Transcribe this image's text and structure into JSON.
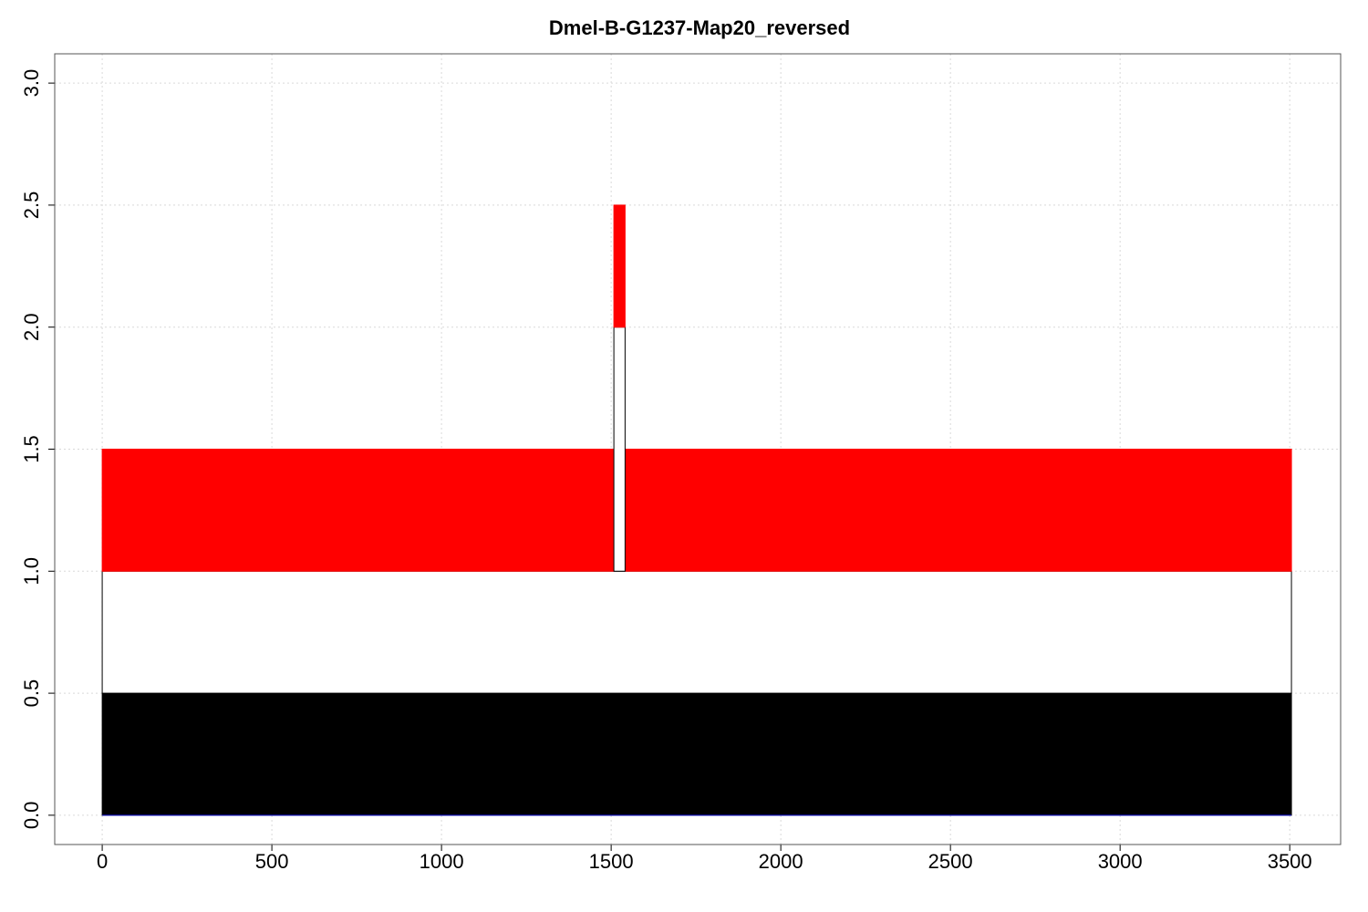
{
  "chart_data": {
    "type": "bar",
    "title": "Dmel-B-G1237-Map20_reversed",
    "xlabel": "",
    "ylabel": "",
    "xlim": [
      -140,
      3650
    ],
    "ylim": [
      -0.12,
      3.12
    ],
    "x_ticks": [
      0,
      500,
      1000,
      1500,
      2000,
      2500,
      3000,
      3500
    ],
    "x_tick_labels": [
      "0",
      "500",
      "1000",
      "1500",
      "2000",
      "2500",
      "3000",
      "3500"
    ],
    "y_ticks": [
      0.0,
      0.5,
      1.0,
      1.5,
      2.0,
      2.5,
      3.0
    ],
    "y_tick_labels": [
      "0.0",
      "0.5",
      "1.0",
      "1.5",
      "2.0",
      "2.5",
      "3.0"
    ],
    "grid": true,
    "segments": [
      {
        "name": "black-bar",
        "x0": 0,
        "x1": 3505,
        "y0": 0.0,
        "y1": 0.5,
        "fill": "#000000",
        "stroke": "#000000"
      },
      {
        "name": "white-bar",
        "x0": 0,
        "x1": 3505,
        "y0": 0.5,
        "y1": 1.0,
        "fill": "#ffffff",
        "stroke": "#000000"
      },
      {
        "name": "red-bar-left",
        "x0": 0,
        "x1": 1508,
        "y0": 1.0,
        "y1": 1.5,
        "fill": "#ff0000",
        "stroke": "#ff0000"
      },
      {
        "name": "red-bar-right",
        "x0": 1541,
        "x1": 3505,
        "y0": 1.0,
        "y1": 1.5,
        "fill": "#ff0000",
        "stroke": "#ff0000"
      },
      {
        "name": "white-spike",
        "x0": 1508,
        "x1": 1541,
        "y0": 1.0,
        "y1": 2.0,
        "fill": "#ffffff",
        "stroke": "#000000"
      },
      {
        "name": "red-spike",
        "x0": 1508,
        "x1": 1541,
        "y0": 2.0,
        "y1": 2.5,
        "fill": "#ff0000",
        "stroke": "#ff0000"
      }
    ],
    "baseline_color": "#0000cc"
  }
}
